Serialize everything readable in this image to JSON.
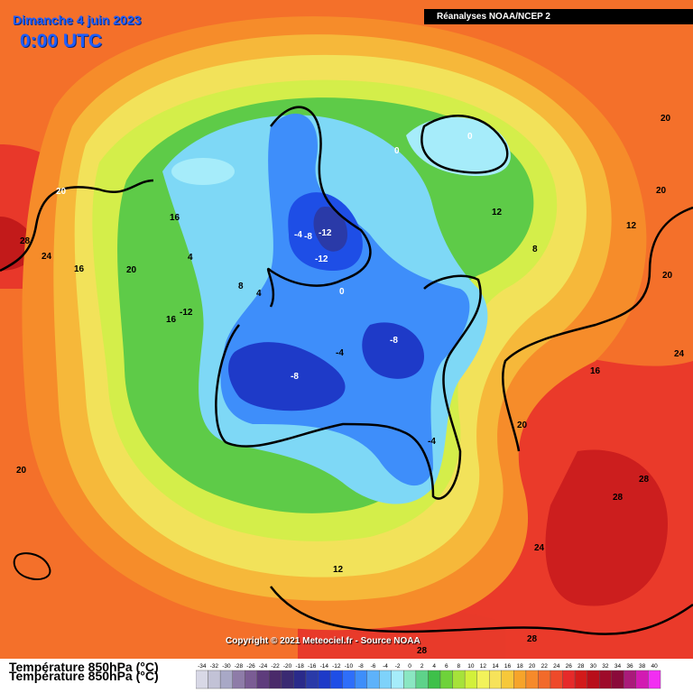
{
  "header": {
    "date": "Dimanche 4 juin 2023",
    "time": "0:00 UTC",
    "source": "Réanalyses NOAA/NCEP 2"
  },
  "footer": {
    "copyright": "Copyright © 2021 Meteociel.fr - Source NOAA",
    "title": "Température 850hPa (°C)"
  },
  "scale": {
    "ticks": [
      "-34",
      "-32",
      "-30",
      "-28",
      "-26",
      "-24",
      "-22",
      "-20",
      "-18",
      "-16",
      "-14",
      "-12",
      "-10",
      "-8",
      "-6",
      "-4",
      "-2",
      "0",
      "2",
      "4",
      "6",
      "8",
      "10",
      "12",
      "14",
      "16",
      "18",
      "20",
      "22",
      "24",
      "26",
      "28",
      "30",
      "32",
      "34",
      "36",
      "38",
      "40"
    ],
    "colors": [
      "#d8d8e6",
      "#c2c2d6",
      "#a8a8c6",
      "#8e7ca8",
      "#7a5c94",
      "#5e3c7c",
      "#4a2a6a",
      "#3a2a72",
      "#2a2a8a",
      "#2a3aa8",
      "#1e3ac8",
      "#1e4ee6",
      "#2e6efa",
      "#3e8efa",
      "#5eb2fa",
      "#7ed2fa",
      "#a6ecfa",
      "#8ae6c2",
      "#5ed28a",
      "#3ec04a",
      "#6ed23a",
      "#a6e23a",
      "#d2f03a",
      "#f2f25a",
      "#f6e25a",
      "#f6c83a",
      "#f6a42a",
      "#f68a2a",
      "#f26a2a",
      "#ee4a2a",
      "#e62a2a",
      "#d21a1a",
      "#b80e1a",
      "#9e0a2a",
      "#8a0a3a",
      "#aa1a7a",
      "#d21ab2",
      "#f22ef2"
    ]
  },
  "contour_labels": [
    "20",
    "28",
    "24",
    "16",
    "20",
    "16",
    "16",
    "-12",
    "12",
    "12",
    "8",
    "20",
    "24",
    "16",
    "20",
    "28",
    "28",
    "24",
    "20",
    "28",
    "20",
    "0",
    "0",
    "-4",
    "-8",
    "-12",
    "-12",
    "0",
    "8",
    "-4",
    "4",
    "-8",
    "-8",
    "-4",
    "4",
    "12",
    "20",
    "28"
  ],
  "colors": {
    "warm": "#f46c2a",
    "cold": "#1e4ee6"
  }
}
